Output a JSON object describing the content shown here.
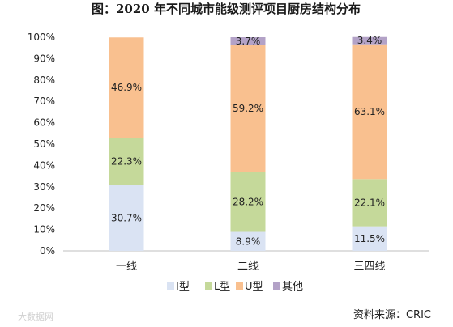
{
  "chart_data": {
    "type": "bar",
    "stacked": true,
    "title": "图：2020 年不同城市能级测评项目厨房结构分布",
    "categories": [
      "一线",
      "二线",
      "三四线"
    ],
    "ylim": [
      0,
      100
    ],
    "yticks": [
      "0%",
      "10%",
      "20%",
      "30%",
      "40%",
      "50%",
      "60%",
      "70%",
      "80%",
      "90%",
      "100%"
    ],
    "series": [
      {
        "name": "I型",
        "color": "#dae3f3",
        "values": [
          30.7,
          8.9,
          11.5
        ],
        "labels": [
          "30.7%",
          "8.9%",
          "11.5%"
        ]
      },
      {
        "name": "L型",
        "color": "#c5d99a",
        "values": [
          22.3,
          28.2,
          22.1
        ],
        "labels": [
          "22.3%",
          "28.2%",
          "22.1%"
        ]
      },
      {
        "name": "U型",
        "color": "#f9c08f",
        "values": [
          46.9,
          59.2,
          63.1
        ],
        "labels": [
          "46.9%",
          "59.2%",
          "63.1%"
        ]
      },
      {
        "name": "其他",
        "color": "#b3a2c7",
        "values": [
          0,
          3.7,
          3.4
        ],
        "labels": [
          "",
          "3.7%",
          "3.4%"
        ]
      }
    ],
    "legend_position": "bottom",
    "grid": false
  },
  "source": "资料来源：CRIC",
  "watermark": "大数据网"
}
